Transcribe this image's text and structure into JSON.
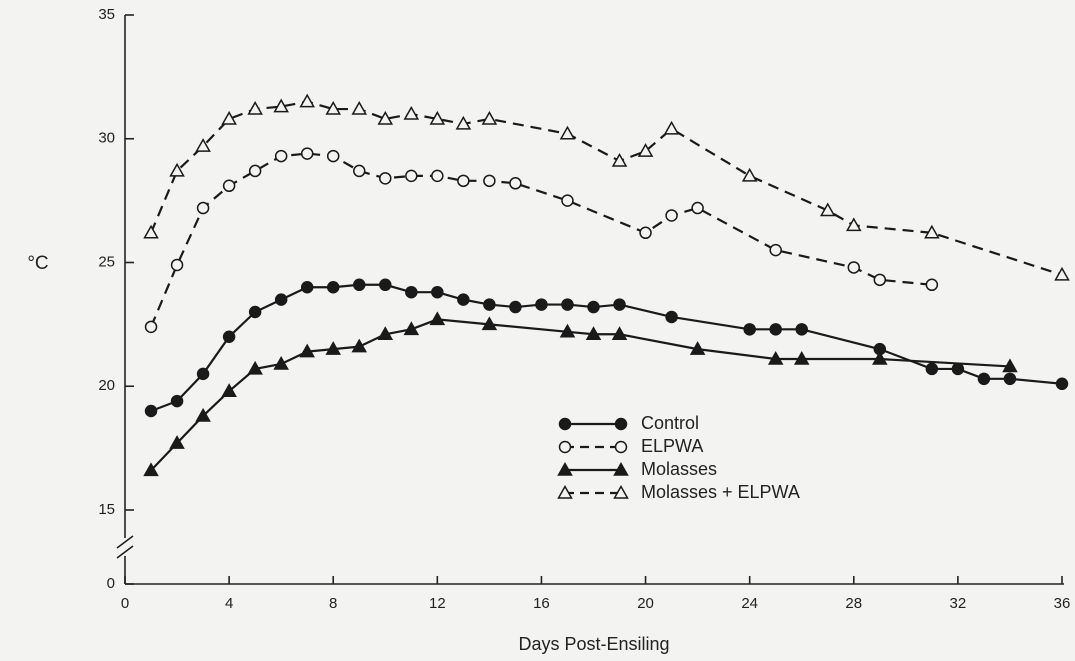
{
  "chart_data": {
    "type": "line",
    "xlabel": "Days Post-Ensiling",
    "ylabel": "°C",
    "xlim": [
      0,
      36
    ],
    "xticks": [
      0,
      4,
      8,
      12,
      16,
      20,
      24,
      28,
      32,
      36
    ],
    "ylim": [
      0,
      35
    ],
    "ybreak": [
      0,
      15
    ],
    "yticks": [
      0,
      15,
      20,
      25,
      30,
      35
    ],
    "grid": false,
    "series": [
      {
        "name": "Control",
        "color": "#1a1a1a",
        "marker": "circle",
        "filled": true,
        "dashed": false,
        "x": [
          1,
          2,
          3,
          4,
          5,
          6,
          7,
          8,
          9,
          10,
          11,
          12,
          13,
          14,
          15,
          16,
          17,
          18,
          19,
          21,
          24,
          25,
          26,
          29,
          31,
          32,
          33,
          34,
          36
        ],
        "values": [
          19.0,
          19.4,
          20.5,
          22.0,
          23.0,
          23.5,
          24.0,
          24.0,
          24.1,
          24.1,
          23.8,
          23.8,
          23.5,
          23.3,
          23.2,
          23.3,
          23.3,
          23.2,
          23.3,
          22.8,
          22.3,
          22.3,
          22.3,
          21.5,
          20.7,
          20.7,
          20.3,
          20.3,
          20.1
        ]
      },
      {
        "name": "ELPWA",
        "color": "#1a1a1a",
        "marker": "circle",
        "filled": false,
        "dashed": true,
        "x": [
          1,
          2,
          3,
          4,
          5,
          6,
          7,
          8,
          9,
          10,
          11,
          12,
          13,
          14,
          15,
          17,
          20,
          21,
          22,
          25,
          28,
          29,
          31
        ],
        "values": [
          22.4,
          24.9,
          27.2,
          28.1,
          28.7,
          29.3,
          29.4,
          29.3,
          28.7,
          28.4,
          28.5,
          28.5,
          28.3,
          28.3,
          28.2,
          27.5,
          26.2,
          26.9,
          27.2,
          25.5,
          24.8,
          24.3,
          24.1
        ]
      },
      {
        "name": "Molasses",
        "color": "#1a1a1a",
        "marker": "triangle",
        "filled": true,
        "dashed": false,
        "x": [
          1,
          2,
          3,
          4,
          5,
          6,
          7,
          8,
          9,
          10,
          11,
          12,
          14,
          17,
          18,
          19,
          22,
          25,
          26,
          29,
          34
        ],
        "values": [
          16.6,
          17.7,
          18.8,
          19.8,
          20.7,
          20.9,
          21.4,
          21.5,
          21.6,
          22.1,
          22.3,
          22.7,
          22.5,
          22.2,
          22.1,
          22.1,
          21.5,
          21.1,
          21.1,
          21.1,
          20.8
        ]
      },
      {
        "name": "Molasses + ELPWA",
        "color": "#1a1a1a",
        "marker": "triangle",
        "filled": false,
        "dashed": true,
        "x": [
          1,
          2,
          3,
          4,
          5,
          6,
          7,
          8,
          9,
          10,
          11,
          12,
          13,
          14,
          17,
          19,
          20,
          21,
          24,
          27,
          28,
          31,
          36
        ],
        "values": [
          26.2,
          28.7,
          29.7,
          30.8,
          31.2,
          31.3,
          31.5,
          31.2,
          31.2,
          30.8,
          31.0,
          30.8,
          30.6,
          30.8,
          30.2,
          29.1,
          29.5,
          30.4,
          28.5,
          27.1,
          26.5,
          26.2,
          24.5
        ]
      }
    ]
  }
}
